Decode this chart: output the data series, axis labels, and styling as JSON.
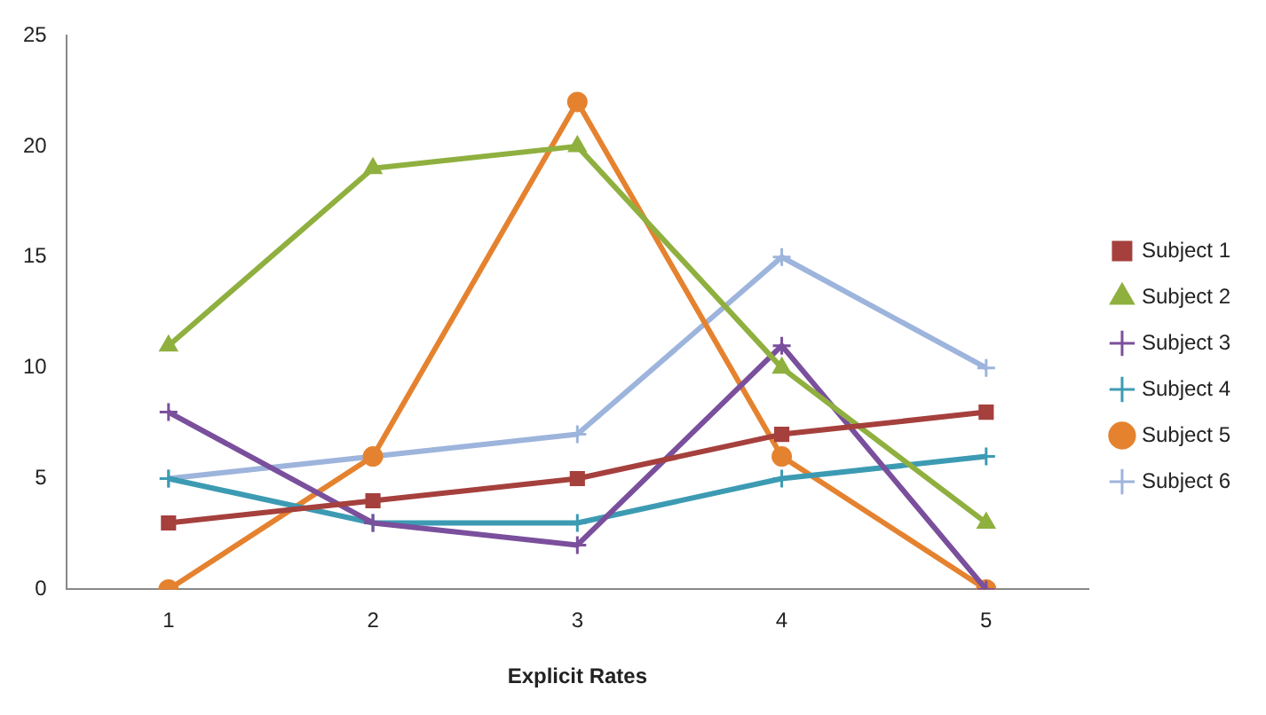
{
  "chart_data": {
    "type": "line",
    "xlabel": "Explicit Rates",
    "categories": [
      "1",
      "2",
      "3",
      "4",
      "5"
    ],
    "ylim": [
      0,
      25
    ],
    "yticks": [
      0,
      5,
      10,
      15,
      20,
      25
    ],
    "grid": false,
    "legend": "right",
    "line_style": "solid",
    "series": [
      {
        "name": "Subject 1",
        "color": "#a5403d",
        "marker": "square",
        "values": [
          3,
          4,
          5,
          7,
          8
        ]
      },
      {
        "name": "Subject 2",
        "color": "#8fb03f",
        "marker": "triangle",
        "values": [
          11,
          19,
          20,
          10,
          3
        ]
      },
      {
        "name": "Subject 3",
        "color": "#7a4f9c",
        "marker": "cross",
        "values": [
          8,
          3,
          2,
          11,
          0
        ]
      },
      {
        "name": "Subject 4",
        "color": "#3c9bb3",
        "marker": "cross",
        "values": [
          5,
          3,
          3,
          5,
          6
        ]
      },
      {
        "name": "Subject 5",
        "color": "#e5822f",
        "marker": "circle",
        "values": [
          0,
          6,
          22,
          6,
          0
        ]
      },
      {
        "name": "Subject 6",
        "color": "#9db4dc",
        "marker": "cross",
        "values": [
          5,
          6,
          7,
          15,
          10
        ]
      }
    ]
  }
}
